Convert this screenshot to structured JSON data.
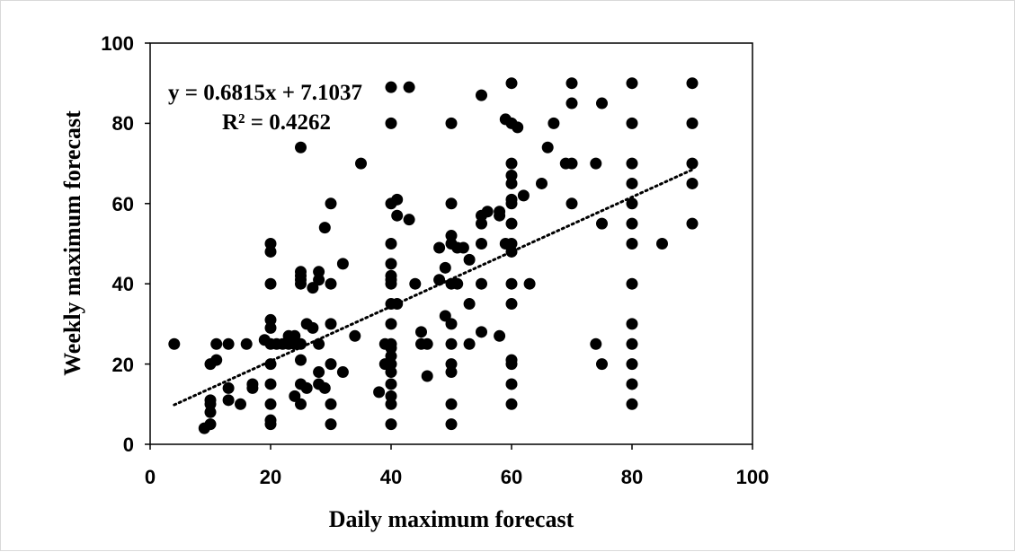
{
  "chart_data": {
    "type": "scatter",
    "xlabel": "Daily maximum forecast",
    "ylabel": "Weekly maximum forecast",
    "xlim": [
      0,
      100
    ],
    "ylim": [
      0,
      100
    ],
    "x_ticks": [
      "0",
      "20",
      "40",
      "60",
      "80",
      "100"
    ],
    "y_ticks": [
      "0",
      "20",
      "40",
      "60",
      "80",
      "100"
    ],
    "grid": false,
    "marker_color": "#000000",
    "trendline": {
      "style": "dotted",
      "slope": 0.6815,
      "intercept": 7.1037,
      "x_range": [
        4,
        90
      ],
      "equation_label": "y = 0.6815x + 7.1037",
      "r2_label": "R² = 0.4262"
    },
    "points": [
      [
        4,
        25
      ],
      [
        9,
        4
      ],
      [
        10,
        5
      ],
      [
        10,
        8
      ],
      [
        10,
        10
      ],
      [
        10,
        11
      ],
      [
        10,
        20
      ],
      [
        11,
        21
      ],
      [
        11,
        25
      ],
      [
        13,
        11
      ],
      [
        13,
        14
      ],
      [
        13,
        25
      ],
      [
        15,
        10
      ],
      [
        16,
        25
      ],
      [
        17,
        14
      ],
      [
        17,
        15
      ],
      [
        19,
        26
      ],
      [
        20,
        5
      ],
      [
        20,
        6
      ],
      [
        20,
        10
      ],
      [
        20,
        15
      ],
      [
        20,
        20
      ],
      [
        20,
        25
      ],
      [
        20,
        29
      ],
      [
        20,
        31
      ],
      [
        20,
        40
      ],
      [
        20,
        48
      ],
      [
        20,
        50
      ],
      [
        21,
        25
      ],
      [
        22,
        25
      ],
      [
        23,
        27
      ],
      [
        23,
        25
      ],
      [
        24,
        12
      ],
      [
        24,
        27
      ],
      [
        24,
        25
      ],
      [
        25,
        10
      ],
      [
        25,
        15
      ],
      [
        25,
        21
      ],
      [
        25,
        25
      ],
      [
        25,
        40
      ],
      [
        25,
        41
      ],
      [
        25,
        42
      ],
      [
        25,
        43
      ],
      [
        25,
        74
      ],
      [
        26,
        14
      ],
      [
        26,
        30
      ],
      [
        27,
        29
      ],
      [
        27,
        39
      ],
      [
        28,
        15
      ],
      [
        28,
        18
      ],
      [
        28,
        25
      ],
      [
        28,
        41
      ],
      [
        28,
        43
      ],
      [
        29,
        14
      ],
      [
        29,
        54
      ],
      [
        30,
        5
      ],
      [
        30,
        10
      ],
      [
        30,
        20
      ],
      [
        30,
        30
      ],
      [
        30,
        40
      ],
      [
        30,
        60
      ],
      [
        32,
        18
      ],
      [
        32,
        45
      ],
      [
        34,
        27
      ],
      [
        35,
        70
      ],
      [
        38,
        13
      ],
      [
        39,
        20
      ],
      [
        39,
        25
      ],
      [
        40,
        5
      ],
      [
        40,
        10
      ],
      [
        40,
        12
      ],
      [
        40,
        15
      ],
      [
        40,
        18
      ],
      [
        40,
        20
      ],
      [
        40,
        22
      ],
      [
        40,
        24
      ],
      [
        40,
        25
      ],
      [
        40,
        30
      ],
      [
        40,
        35
      ],
      [
        40,
        40
      ],
      [
        40,
        41
      ],
      [
        40,
        42
      ],
      [
        40,
        45
      ],
      [
        40,
        50
      ],
      [
        40,
        60
      ],
      [
        40,
        80
      ],
      [
        40,
        89
      ],
      [
        41,
        35
      ],
      [
        41,
        57
      ],
      [
        41,
        61
      ],
      [
        43,
        56
      ],
      [
        43,
        89
      ],
      [
        44,
        40
      ],
      [
        45,
        25
      ],
      [
        45,
        28
      ],
      [
        46,
        17
      ],
      [
        46,
        25
      ],
      [
        48,
        41
      ],
      [
        48,
        49
      ],
      [
        49,
        32
      ],
      [
        49,
        44
      ],
      [
        50,
        5
      ],
      [
        50,
        10
      ],
      [
        50,
        18
      ],
      [
        50,
        20
      ],
      [
        50,
        25
      ],
      [
        50,
        30
      ],
      [
        50,
        40
      ],
      [
        50,
        50
      ],
      [
        50,
        52
      ],
      [
        50,
        60
      ],
      [
        50,
        80
      ],
      [
        51,
        40
      ],
      [
        51,
        49
      ],
      [
        52,
        49
      ],
      [
        53,
        25
      ],
      [
        53,
        35
      ],
      [
        53,
        46
      ],
      [
        55,
        28
      ],
      [
        55,
        40
      ],
      [
        55,
        50
      ],
      [
        55,
        55
      ],
      [
        55,
        57
      ],
      [
        55,
        87
      ],
      [
        56,
        58
      ],
      [
        58,
        27
      ],
      [
        58,
        57
      ],
      [
        58,
        58
      ],
      [
        59,
        50
      ],
      [
        59,
        81
      ],
      [
        60,
        10
      ],
      [
        60,
        15
      ],
      [
        60,
        20
      ],
      [
        60,
        21
      ],
      [
        60,
        35
      ],
      [
        60,
        40
      ],
      [
        60,
        48
      ],
      [
        60,
        50
      ],
      [
        60,
        55
      ],
      [
        60,
        60
      ],
      [
        60,
        61
      ],
      [
        60,
        65
      ],
      [
        60,
        67
      ],
      [
        60,
        70
      ],
      [
        60,
        80
      ],
      [
        60,
        90
      ],
      [
        61,
        79
      ],
      [
        62,
        62
      ],
      [
        63,
        40
      ],
      [
        65,
        65
      ],
      [
        66,
        74
      ],
      [
        67,
        80
      ],
      [
        69,
        70
      ],
      [
        70,
        60
      ],
      [
        70,
        70
      ],
      [
        70,
        85
      ],
      [
        70,
        90
      ],
      [
        74,
        25
      ],
      [
        74,
        70
      ],
      [
        75,
        20
      ],
      [
        75,
        55
      ],
      [
        75,
        85
      ],
      [
        80,
        10
      ],
      [
        80,
        15
      ],
      [
        80,
        20
      ],
      [
        80,
        25
      ],
      [
        80,
        30
      ],
      [
        80,
        40
      ],
      [
        80,
        50
      ],
      [
        80,
        55
      ],
      [
        80,
        60
      ],
      [
        80,
        65
      ],
      [
        80,
        70
      ],
      [
        80,
        80
      ],
      [
        80,
        90
      ],
      [
        85,
        50
      ],
      [
        90,
        55
      ],
      [
        90,
        65
      ],
      [
        90,
        70
      ],
      [
        90,
        80
      ],
      [
        90,
        90
      ]
    ]
  }
}
